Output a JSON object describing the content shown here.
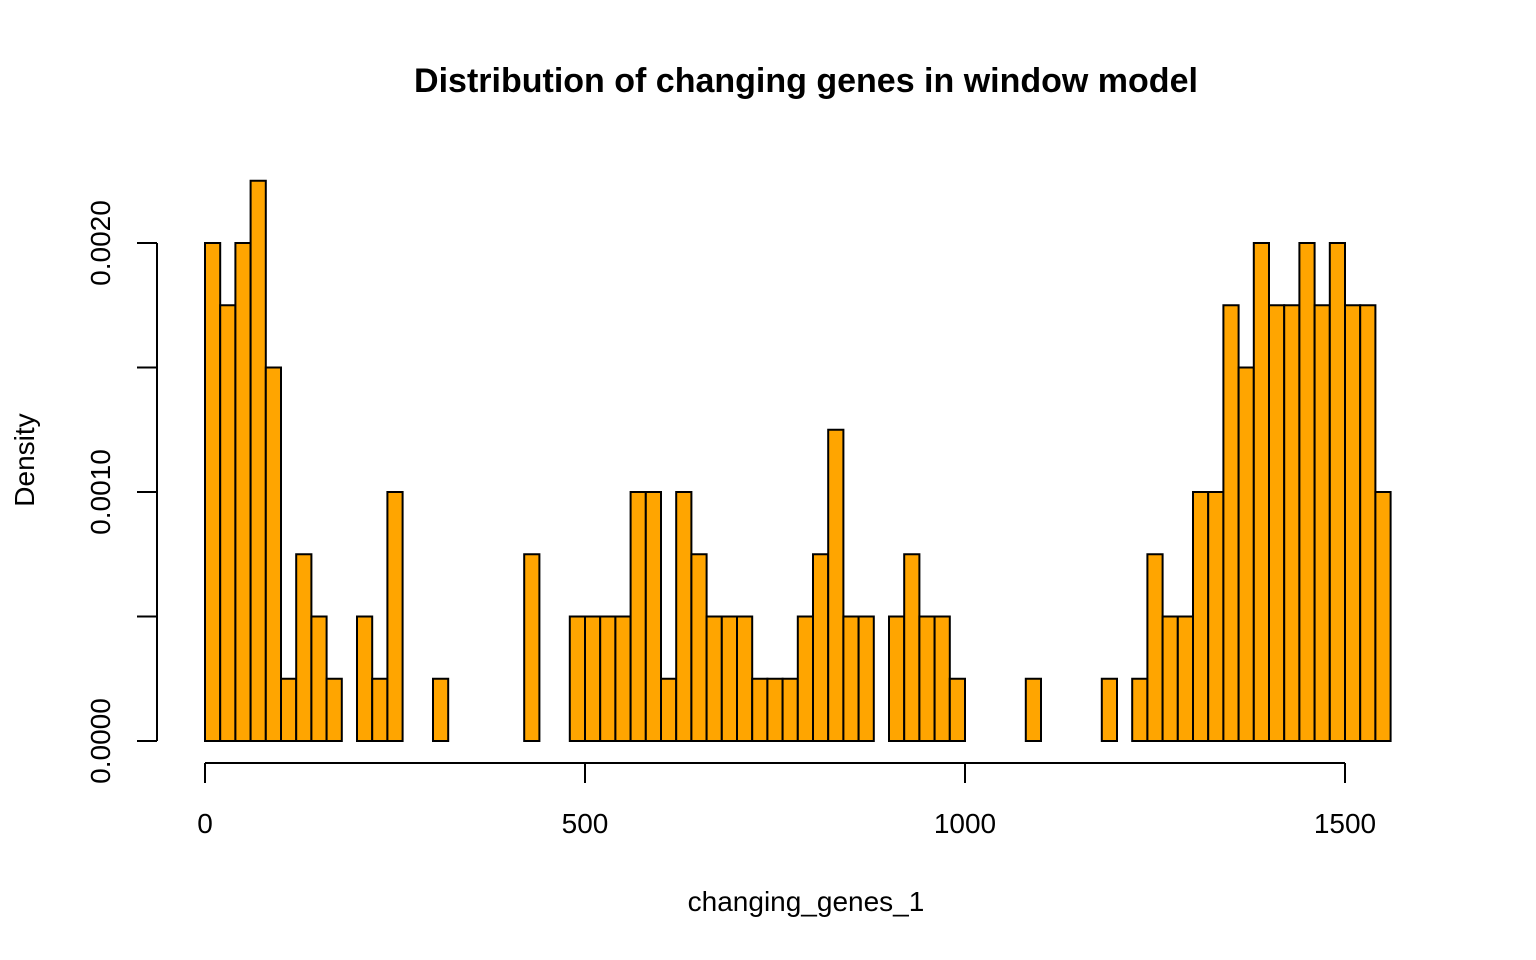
{
  "chart_data": {
    "type": "bar",
    "title": "Distribution of changing genes in window model",
    "xlabel": "changing_genes_1",
    "ylabel": "Density",
    "bin_width": 20,
    "x_start": 0,
    "xlim": [
      0,
      1580
    ],
    "ylim": [
      0,
      0.00225
    ],
    "x_ticks": [
      0,
      500,
      1000,
      1500
    ],
    "x_tick_labels": [
      "0",
      "500",
      "1000",
      "1500"
    ],
    "y_ticks": [
      0,
      0.0005,
      0.001,
      0.0015,
      0.002
    ],
    "y_tick_labels": [
      "0.0000",
      "",
      "0.0010",
      "",
      "0.0020"
    ],
    "bar_color": "#FFA500",
    "grid": false,
    "legend": "none",
    "values": [
      0.002,
      0.00175,
      0.002,
      0.00225,
      0.0015,
      0.00025,
      0.00075,
      0.0005,
      0.00025,
      0,
      0.0005,
      0.00025,
      0.001,
      0,
      0,
      0.00025,
      0,
      0,
      0,
      0,
      0,
      0.00075,
      0,
      0,
      0.0005,
      0.0005,
      0.0005,
      0.0005,
      0.001,
      0.001,
      0.00025,
      0.001,
      0.00075,
      0.0005,
      0.0005,
      0.0005,
      0.00025,
      0.00025,
      0.00025,
      0.0005,
      0.00075,
      0.00125,
      0.0005,
      0.0005,
      0,
      0.0005,
      0.00075,
      0.0005,
      0.0005,
      0.00025,
      0,
      0,
      0,
      0,
      0.00025,
      0,
      0,
      0,
      0,
      0.00025,
      0,
      0.00025,
      0.00075,
      0.0005,
      0.0005,
      0.001,
      0.001,
      0.00175,
      0.0015,
      0.002,
      0.00175,
      0.00175,
      0.002,
      0.00175,
      0.002,
      0.00175,
      0.00175,
      0.001,
      0,
      0
    ]
  }
}
